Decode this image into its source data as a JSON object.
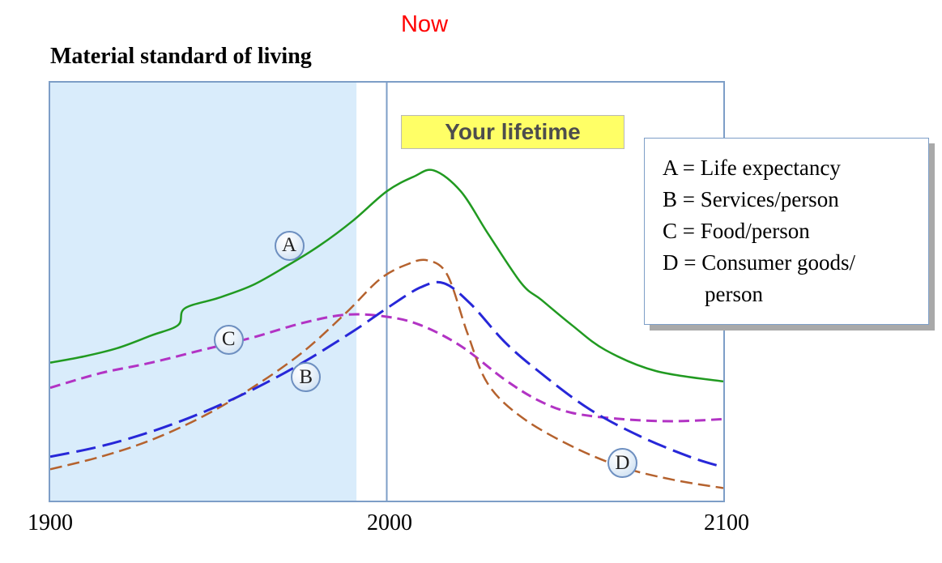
{
  "chart_data": {
    "type": "line",
    "title": "Material standard of living",
    "x_range": [
      1900,
      2100
    ],
    "x_ticks": [
      "1900",
      "2000",
      "2100"
    ],
    "y_range": [
      0,
      100
    ],
    "y_note": "relative scale (no y-axis values shown)",
    "grid": false,
    "legend_position": "outside upper right",
    "legend_lines": [
      "A = Life expectancy",
      "B = Services/person",
      "C = Food/person",
      "D = Consumer goods/",
      "person"
    ],
    "annotations": {
      "now": "Now",
      "now_year": 2000,
      "lifetime": "Your lifetime"
    },
    "shaded_region": [
      1900,
      1991
    ],
    "colors": {
      "shade": "#d9ecfb",
      "frame": "#7d9ec7",
      "now_text": "#ff0000",
      "lifetime_bg": "#ffff66",
      "legend_shadow": "#a9a9a9"
    },
    "series": [
      {
        "letter": "C",
        "name": "Food/person",
        "color": "#b233c4",
        "dash": "13 7",
        "width": 3,
        "points": [
          [
            1900,
            27
          ],
          [
            1915,
            30.5
          ],
          [
            1930,
            33
          ],
          [
            1945,
            36
          ],
          [
            1960,
            39
          ],
          [
            1975,
            42.5
          ],
          [
            1988,
            44.5
          ],
          [
            2000,
            44
          ],
          [
            2010,
            42
          ],
          [
            2022,
            37
          ],
          [
            2035,
            29
          ],
          [
            2045,
            24
          ],
          [
            2055,
            21
          ],
          [
            2070,
            19.5
          ],
          [
            2085,
            19
          ],
          [
            2100,
            19.5
          ]
        ]
      },
      {
        "letter": "D",
        "name": "Consumer goods/person",
        "color": "#b5622e",
        "dash": "15 7",
        "width": 2.5,
        "points": [
          [
            1900,
            7.5
          ],
          [
            1915,
            10.5
          ],
          [
            1930,
            14.5
          ],
          [
            1945,
            20
          ],
          [
            1960,
            27
          ],
          [
            1975,
            35.5
          ],
          [
            1988,
            45
          ],
          [
            1998,
            53
          ],
          [
            2006,
            56.5
          ],
          [
            2012,
            57.5
          ],
          [
            2018,
            54
          ],
          [
            2024,
            40
          ],
          [
            2030,
            28
          ],
          [
            2040,
            20
          ],
          [
            2055,
            13
          ],
          [
            2070,
            8
          ],
          [
            2085,
            5
          ],
          [
            2100,
            3
          ]
        ]
      },
      {
        "letter": "B",
        "name": "Services/person",
        "color": "#2727d8",
        "dash": "24 9",
        "width": 3,
        "points": [
          [
            1900,
            10.5
          ],
          [
            1915,
            13
          ],
          [
            1930,
            16.5
          ],
          [
            1945,
            21
          ],
          [
            1960,
            26.5
          ],
          [
            1975,
            33
          ],
          [
            1990,
            40.5
          ],
          [
            2000,
            46
          ],
          [
            2010,
            51
          ],
          [
            2017,
            52
          ],
          [
            2025,
            47
          ],
          [
            2035,
            38
          ],
          [
            2045,
            31
          ],
          [
            2060,
            22
          ],
          [
            2075,
            15.5
          ],
          [
            2090,
            10.5
          ],
          [
            2100,
            8
          ]
        ]
      },
      {
        "letter": "A",
        "name": "Life expectancy",
        "color": "#219a21",
        "dash": null,
        "width": 2.5,
        "points": [
          [
            1900,
            33
          ],
          [
            1910,
            34.5
          ],
          [
            1920,
            36.5
          ],
          [
            1930,
            39.5
          ],
          [
            1938,
            42
          ],
          [
            1940,
            46
          ],
          [
            1950,
            48.5
          ],
          [
            1960,
            51.5
          ],
          [
            1970,
            56
          ],
          [
            1980,
            61
          ],
          [
            1990,
            67
          ],
          [
            2000,
            74
          ],
          [
            2008,
            77.5
          ],
          [
            2014,
            79
          ],
          [
            2022,
            74
          ],
          [
            2030,
            64
          ],
          [
            2040,
            52
          ],
          [
            2046,
            48
          ],
          [
            2055,
            42
          ],
          [
            2065,
            36
          ],
          [
            2080,
            31
          ],
          [
            2100,
            28.5
          ]
        ]
      }
    ],
    "curve_labels": [
      {
        "letter": "A",
        "year": 1971,
        "value": 61
      },
      {
        "letter": "C",
        "year": 1953,
        "value": 38.5
      },
      {
        "letter": "B",
        "year": 1976,
        "value": 29.5
      },
      {
        "letter": "D",
        "year": 2070,
        "value": 9
      }
    ]
  }
}
